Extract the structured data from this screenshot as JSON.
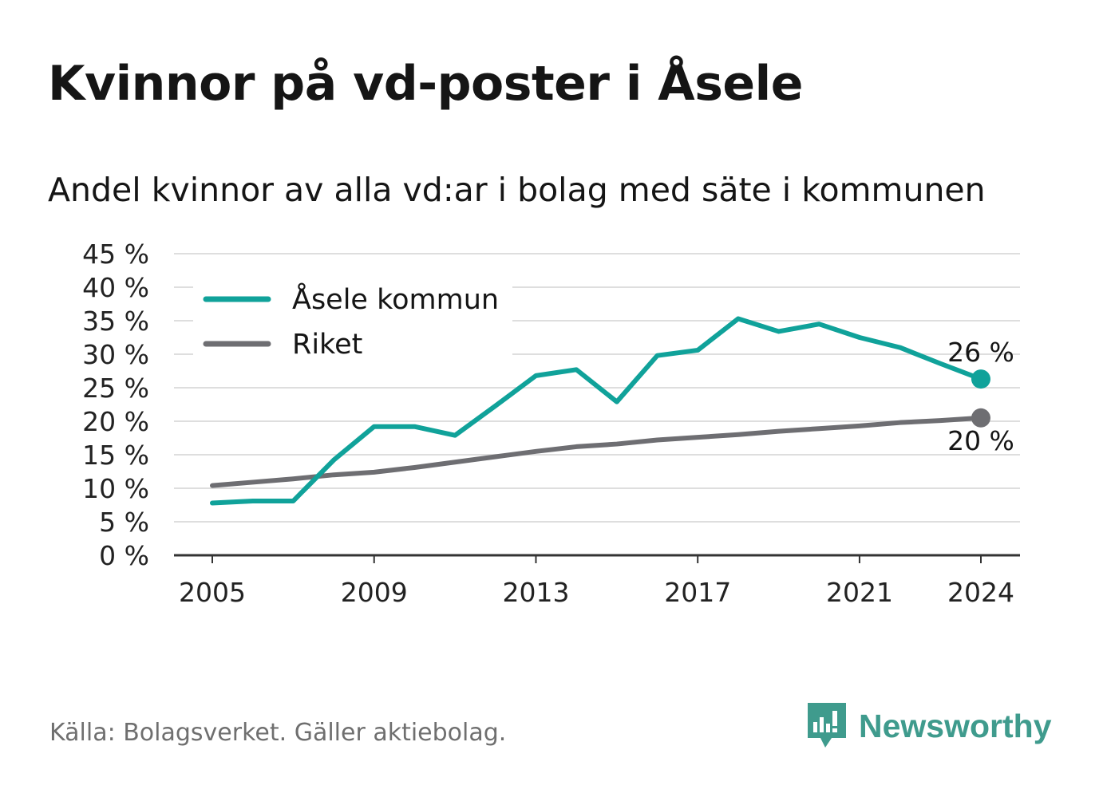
{
  "title": "Kvinnor på vd-poster i Åsele",
  "subtitle": "Andel kvinnor av alla vd:ar i bolag med säte i kommunen",
  "footer": {
    "source": "Källa: Bolagsverket. Gäller aktiebolag.",
    "brand": "Newsworthy"
  },
  "colors": {
    "asele": "#10a29a",
    "riket": "#6e6e72",
    "grid": "#dedede",
    "axis": "#333333",
    "brand": "#3f9b8d"
  },
  "chart_data": {
    "type": "line",
    "x": [
      2005,
      2006,
      2007,
      2008,
      2009,
      2010,
      2011,
      2012,
      2013,
      2014,
      2015,
      2016,
      2017,
      2018,
      2019,
      2020,
      2021,
      2022,
      2023,
      2024
    ],
    "series": [
      {
        "name": "Åsele kommun",
        "color": "#10a29a",
        "values": [
          7.8,
          8.1,
          8.1,
          14.2,
          19.2,
          19.2,
          17.9,
          22.3,
          26.8,
          27.7,
          22.9,
          29.8,
          30.6,
          35.3,
          33.4,
          34.5,
          32.5,
          31.0,
          28.6,
          26.3
        ]
      },
      {
        "name": "Riket",
        "color": "#6e6e72",
        "values": [
          10.4,
          10.9,
          11.4,
          12.0,
          12.4,
          13.1,
          13.9,
          14.7,
          15.5,
          16.2,
          16.6,
          17.2,
          17.6,
          18.0,
          18.5,
          18.9,
          19.3,
          19.8,
          20.1,
          20.5
        ]
      }
    ],
    "end_labels": [
      "26 %",
      "20 %"
    ],
    "x_ticks": [
      2005,
      2009,
      2013,
      2017,
      2021,
      2024
    ],
    "x_tick_labels": [
      "2005",
      "2009",
      "2013",
      "2017",
      "2021",
      "2024"
    ],
    "y_ticks": [
      0,
      5,
      10,
      15,
      20,
      25,
      30,
      35,
      40,
      45
    ],
    "y_tick_labels": [
      "0 %",
      "5 %",
      "10 %",
      "15 %",
      "20 %",
      "25 %",
      "30 %",
      "35 %",
      "40 %",
      "45 %"
    ],
    "ylim": [
      0,
      45
    ],
    "xlim": [
      2005,
      2024
    ],
    "grid": true,
    "legend": "top-left"
  }
}
